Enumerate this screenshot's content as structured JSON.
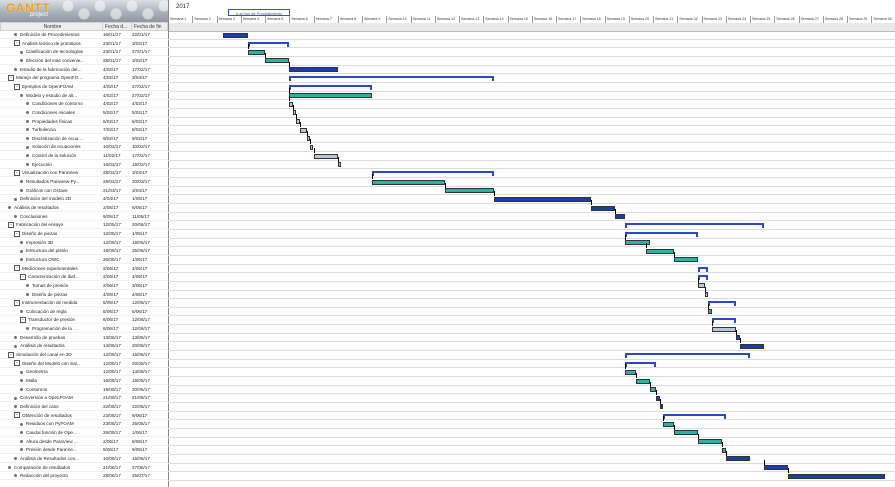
{
  "app": {
    "logo_text": "GANTT",
    "logo_sub": "project",
    "year": "2017",
    "today_button": "Ir al hoy de Procedimiento"
  },
  "headers": {
    "name": "Nombre",
    "start": "Fecha d...",
    "end": "Fecha de fin"
  },
  "colors": {
    "summary": "#2a49c8",
    "bar_dark": "#1c3fa6",
    "bar_teal": "#2fb0a4",
    "bar_grey": "#b8c7d6"
  },
  "weeks": [
    "Semana 1",
    "Semana 2",
    "Semana 3",
    "Semana 4",
    "Semana 5",
    "Semana 6",
    "Semana 7",
    "Semana 8",
    "Semana 9",
    "Semana 10",
    "Semana 11",
    "Semana 12",
    "Semana 13",
    "Semana 14",
    "Semana 15",
    "Semana 16",
    "Semana 17",
    "Semana 18",
    "Semana 19",
    "Semana 20",
    "Semana 21",
    "Semana 22",
    "Semana 23",
    "Semana 24",
    "Semana 25",
    "Semana 26",
    "Semana 27",
    "Semana 28",
    "Semana 29",
    "Semana 30"
  ],
  "tasks": [
    {
      "name": "Definición de Procedimientos",
      "start": "16/01/17",
      "end": "22/01/17",
      "level": 1,
      "group": false
    },
    {
      "name": "Análisis teórico de prototipos",
      "start": "23/01/17",
      "end": "3/02/17",
      "level": 1,
      "group": true
    },
    {
      "name": "Clasificación de tecnologías",
      "start": "23/01/17",
      "end": "27/01/17",
      "level": 2,
      "group": false
    },
    {
      "name": "Elección del más convenie...",
      "start": "28/01/17",
      "end": "3/02/17",
      "level": 2,
      "group": false
    },
    {
      "name": "Estudio de la fabricación del...",
      "start": "4/02/17",
      "end": "17/02/17",
      "level": 1,
      "group": false
    },
    {
      "name": "Manejo del programa OpenFO...",
      "start": "4/02/17",
      "end": "3/04/17",
      "level": 0,
      "group": true
    },
    {
      "name": "Ejemplos de OpenFOAM",
      "start": "4/02/17",
      "end": "27/02/17",
      "level": 1,
      "group": true
    },
    {
      "name": "Modelo y estudio de alt...",
      "start": "4/02/17",
      "end": "27/02/17",
      "level": 2,
      "group": false
    },
    {
      "name": "Condiciones de contorno",
      "start": "4/02/17",
      "end": "4/02/17",
      "level": 3,
      "group": false
    },
    {
      "name": "Condiciones iniciales",
      "start": "5/02/17",
      "end": "5/02/17",
      "level": 3,
      "group": false
    },
    {
      "name": "Propiedades físicas",
      "start": "6/02/17",
      "end": "6/02/17",
      "level": 3,
      "group": false
    },
    {
      "name": "Turbulencia",
      "start": "7/02/17",
      "end": "8/02/17",
      "level": 3,
      "group": false
    },
    {
      "name": "Discretización de ecua...",
      "start": "9/02/17",
      "end": "9/02/17",
      "level": 3,
      "group": false
    },
    {
      "name": "Solución de ecuaciones",
      "start": "10/02/17",
      "end": "10/02/17",
      "level": 3,
      "group": false
    },
    {
      "name": "Control de la solución",
      "start": "11/02/17",
      "end": "17/02/17",
      "level": 3,
      "group": false
    },
    {
      "name": "Ejecución",
      "start": "18/02/17",
      "end": "18/02/17",
      "level": 3,
      "group": false
    },
    {
      "name": "Visualización con ParaView",
      "start": "28/02/17",
      "end": "3/04/17",
      "level": 1,
      "group": true
    },
    {
      "name": "Resultados Paraview-Py...",
      "start": "28/02/17",
      "end": "20/03/17",
      "level": 2,
      "group": false
    },
    {
      "name": "Gráficos con Octave",
      "start": "21/03/17",
      "end": "3/04/17",
      "level": 2,
      "group": false
    },
    {
      "name": "Definición del modelo 2D",
      "start": "4/04/17",
      "end": "1/05/17",
      "level": 1,
      "group": false
    },
    {
      "name": "Análisis de resultados",
      "start": "2/05/17",
      "end": "8/05/17",
      "level": 0,
      "group": false
    },
    {
      "name": "Conclusiones",
      "start": "9/05/17",
      "end": "11/05/17",
      "level": 1,
      "group": false
    },
    {
      "name": "Fabricación del ensayo",
      "start": "12/05/17",
      "end": "20/06/17",
      "level": 0,
      "group": true
    },
    {
      "name": "Diseño de piezas",
      "start": "12/05/17",
      "end": "1/06/17",
      "level": 1,
      "group": true
    },
    {
      "name": "Impresión 3D",
      "start": "12/05/17",
      "end": "18/05/17",
      "level": 2,
      "group": false
    },
    {
      "name": "Estructura del pistón",
      "start": "18/05/17",
      "end": "25/05/17",
      "level": 2,
      "group": false
    },
    {
      "name": "Estructura OWC",
      "start": "26/05/17",
      "end": "1/06/17",
      "level": 2,
      "group": false
    },
    {
      "name": "Mediciones experimentales",
      "start": "2/06/17",
      "end": "4/06/17",
      "level": 1,
      "group": true
    },
    {
      "name": "Caracterización de diaf...",
      "start": "2/06/17",
      "end": "4/06/17",
      "level": 2,
      "group": true
    },
    {
      "name": "Tomas de presión",
      "start": "2/06/17",
      "end": "3/06/17",
      "level": 3,
      "group": false
    },
    {
      "name": "Diseño de piezas",
      "start": "4/06/17",
      "end": "4/06/17",
      "level": 3,
      "group": false
    },
    {
      "name": "Instrumentación de medida",
      "start": "5/06/17",
      "end": "12/06/17",
      "level": 1,
      "group": true
    },
    {
      "name": "Colocación de regla",
      "start": "5/06/17",
      "end": "5/06/17",
      "level": 2,
      "group": false
    },
    {
      "name": "Transductor de presión",
      "start": "6/06/17",
      "end": "12/06/17",
      "level": 2,
      "group": true
    },
    {
      "name": "Programación de la ...",
      "start": "6/06/17",
      "end": "12/06/17",
      "level": 3,
      "group": false
    },
    {
      "name": "Desarrollo de pruebas",
      "start": "13/06/17",
      "end": "13/06/17",
      "level": 1,
      "group": false
    },
    {
      "name": "Análisis de resultados",
      "start": "14/06/17",
      "end": "20/06/17",
      "level": 1,
      "group": false
    },
    {
      "name": "Simulación del canal en 3D",
      "start": "12/05/17",
      "end": "16/06/17",
      "level": 0,
      "group": true
    },
    {
      "name": "Diseño del Modelo con Sal...",
      "start": "12/05/17",
      "end": "20/05/17",
      "level": 1,
      "group": true
    },
    {
      "name": "Geometría",
      "start": "12/05/17",
      "end": "14/05/17",
      "level": 2,
      "group": false
    },
    {
      "name": "Malla",
      "start": "15/05/17",
      "end": "18/05/17",
      "level": 2,
      "group": false
    },
    {
      "name": "Contornos",
      "start": "19/05/17",
      "end": "20/05/17",
      "level": 2,
      "group": false
    },
    {
      "name": "Conversión a OpenFOAM",
      "start": "21/05/17",
      "end": "21/05/17",
      "level": 1,
      "group": false
    },
    {
      "name": "Definición del caso",
      "start": "22/05/17",
      "end": "22/05/17",
      "level": 1,
      "group": false
    },
    {
      "name": "Obtención de resultados",
      "start": "23/05/17",
      "end": "9/06/17",
      "level": 1,
      "group": true
    },
    {
      "name": "Residuos con PyFOAM",
      "start": "23/05/17",
      "end": "25/05/17",
      "level": 2,
      "group": false
    },
    {
      "name": "Caudal función de Ope...",
      "start": "26/05/17",
      "end": "1/06/17",
      "level": 2,
      "group": false
    },
    {
      "name": "Altura desde ParaView ...",
      "start": "2/06/17",
      "end": "8/06/17",
      "level": 2,
      "group": false
    },
    {
      "name": "Presión desde ParaVie...",
      "start": "9/06/17",
      "end": "9/06/17",
      "level": 2,
      "group": false
    },
    {
      "name": "Análisis de Resultados con...",
      "start": "10/06/17",
      "end": "16/06/17",
      "level": 1,
      "group": false
    },
    {
      "name": "Comparación de resultados",
      "start": "21/06/17",
      "end": "27/06/17",
      "level": 0,
      "group": false
    },
    {
      "name": "Redacción del proyecto",
      "start": "28/06/17",
      "end": "25/07/17",
      "level": 1,
      "group": false
    }
  ]
}
